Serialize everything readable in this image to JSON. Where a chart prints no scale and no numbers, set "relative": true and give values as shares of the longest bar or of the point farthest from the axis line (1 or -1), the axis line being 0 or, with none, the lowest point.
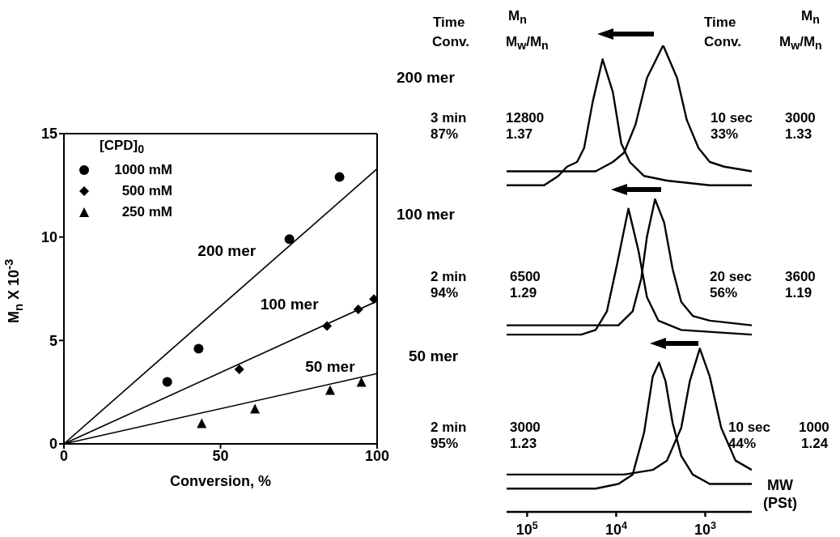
{
  "chart_data": [
    {
      "type": "scatter",
      "xlabel": "Conversion, %",
      "ylabel": "M$_{n}$ X 10$^{-3}$",
      "legend": "top left",
      "legend_title": "[CPD]$_{0}$",
      "xlim": [
        0,
        100
      ],
      "xticks": [
        0,
        50,
        100
      ],
      "ylim": [
        0,
        15
      ],
      "yticks": [
        0,
        5,
        10,
        15
      ],
      "annotations": [
        "200 mer",
        "100 mer",
        "50 mer"
      ],
      "series": [
        {
          "name": "1000 mM",
          "marker": "circle",
          "color": "#000000",
          "x": [
            33,
            43,
            72,
            88
          ],
          "values": [
            3.0,
            4.6,
            9.9,
            12.9
          ]
        },
        {
          "name": "500 mM",
          "marker": "diamond",
          "color": "#000000",
          "x": [
            56,
            84,
            94,
            99
          ],
          "values": [
            3.6,
            5.7,
            6.5,
            7.0
          ]
        },
        {
          "name": "250 mM",
          "marker": "triangle",
          "color": "#000000",
          "x": [
            44,
            61,
            85,
            95
          ],
          "values": [
            1.0,
            1.7,
            2.6,
            3.0
          ]
        },
        {
          "type": "line",
          "color": "#000000",
          "x": [
            0,
            100
          ],
          "values": [
            0,
            13.3
          ]
        },
        {
          "type": "line",
          "color": "#000000",
          "x": [
            0,
            100
          ],
          "values": [
            0,
            6.9
          ]
        },
        {
          "type": "line",
          "color": "#000000",
          "x": [
            0,
            100
          ],
          "values": [
            0,
            3.4
          ]
        }
      ]
    },
    {
      "type": "line",
      "relative": true,
      "log": "x",
      "xlim": [
        170000,
        300
      ],
      "xlabel": "MW (PSt)",
      "xticks": [
        {
          "value": 100000,
          "label": "10$^{5}$"
        },
        {
          "value": 10000,
          "label": "10$^{4}$"
        },
        {
          "value": 1000,
          "label": "10$^{3}$"
        }
      ],
      "annotations": [
        "Time",
        "Conv.",
        "M$_{n}$",
        "M$_{w}$/M$_{n}$",
        "Time",
        "Conv.",
        "M$_{n}$",
        "M$_{w}$/M$_{n}$",
        "200 mer",
        "3 min",
        "87%",
        "12800",
        "1.37",
        "10 sec",
        "33%",
        "3000",
        "1.33",
        "100 mer",
        "2 min",
        "94%",
        "6500",
        "1.29",
        "20 sec",
        "56%",
        "3600",
        "1.19",
        "50 mer",
        "2 min",
        "95%",
        "3000",
        "1.23",
        "10 sec",
        "44%",
        "1000",
        "1.24"
      ],
      "series": [
        {
          "color": "#000000",
          "x": [
            170000,
            64400,
            44600,
            35600,
            27500,
            22900,
            18300,
            14200,
            10900,
            8770,
            7030,
            4860,
            2690,
            889,
            300
          ],
          "values": [
            0.7,
            0.7,
            0.72,
            0.74,
            0.75,
            0.78,
            0.88,
            0.97,
            0.9,
            0.79,
            0.75,
            0.72,
            0.71,
            0.7,
            0.7
          ]
        },
        {
          "color": "#000000",
          "x": [
            170000,
            35600,
            17000,
            10900,
            8150,
            6070,
            4510,
            2970,
            2070,
            1610,
            1190,
            889,
            614,
            300
          ],
          "values": [
            0.73,
            0.73,
            0.73,
            0.75,
            0.77,
            0.83,
            0.93,
            1.0,
            0.93,
            0.84,
            0.78,
            0.75,
            0.74,
            0.73
          ]
        },
        {
          "color": "#000000",
          "x": [
            170000,
            24700,
            17000,
            12700,
            9790,
            7280,
            5620,
            4510,
            3360,
            1860,
            300
          ],
          "values": [
            0.38,
            0.38,
            0.39,
            0.43,
            0.53,
            0.65,
            0.56,
            0.46,
            0.41,
            0.39,
            0.38
          ]
        },
        {
          "color": "#000000",
          "x": [
            170000,
            17000,
            9440,
            6530,
            5230,
            4510,
            3660,
            2890,
            2320,
            1860,
            1380,
            889,
            300
          ],
          "values": [
            0.4,
            0.4,
            0.4,
            0.43,
            0.5,
            0.59,
            0.67,
            0.62,
            0.52,
            0.45,
            0.42,
            0.41,
            0.4
          ]
        },
        {
          "color": "#000000",
          "x": [
            170000,
            17000,
            9440,
            6530,
            4860,
            3890,
            3300,
            2790,
            2320,
            1860,
            1380,
            889,
            300
          ],
          "values": [
            0.05,
            0.05,
            0.06,
            0.08,
            0.17,
            0.29,
            0.32,
            0.28,
            0.19,
            0.12,
            0.08,
            0.06,
            0.06
          ]
        },
        {
          "color": "#000000",
          "x": [
            170000,
            8150,
            3890,
            2690,
            1860,
            1490,
            1150,
            889,
            661,
            457,
            300
          ],
          "values": [
            0.08,
            0.08,
            0.09,
            0.11,
            0.18,
            0.28,
            0.35,
            0.29,
            0.18,
            0.11,
            0.09
          ]
        }
      ]
    }
  ]
}
